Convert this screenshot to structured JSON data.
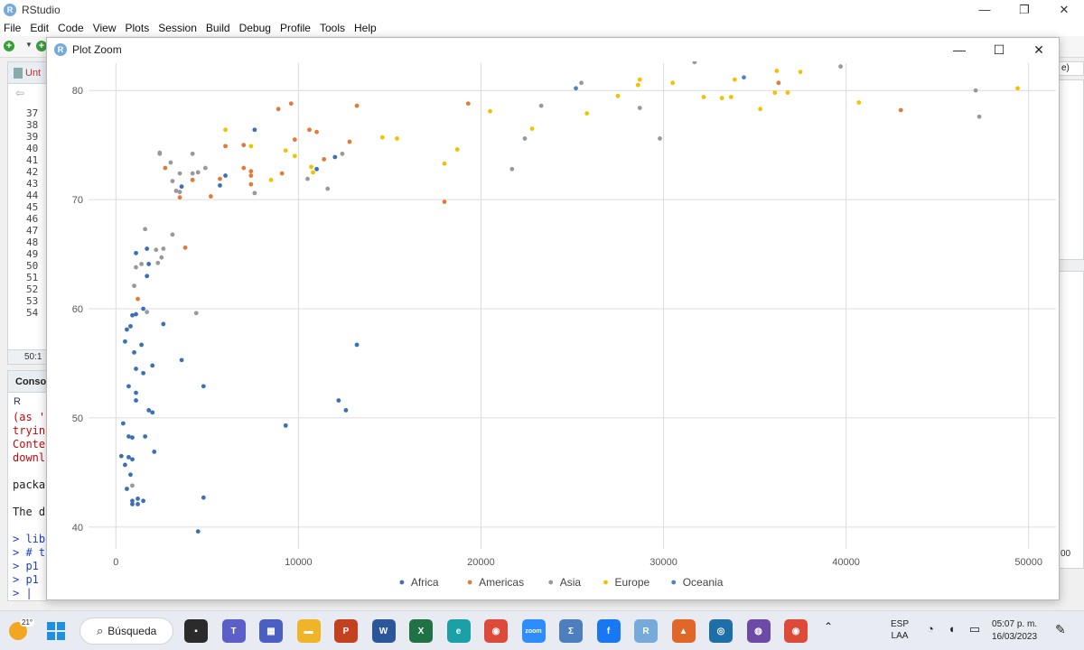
{
  "app": {
    "title": "RStudio",
    "logo_letter": "R",
    "window_controls": {
      "minimize": "—",
      "maximize": "❐",
      "close": "✕"
    }
  },
  "menu": [
    "File",
    "Edit",
    "Code",
    "View",
    "Plots",
    "Session",
    "Build",
    "Debug",
    "Profile",
    "Tools",
    "Help"
  ],
  "editor": {
    "tab_label": "Unt",
    "line_numbers": [
      "37",
      "38",
      "39",
      "40",
      "41",
      "42",
      "43",
      "44",
      "45",
      "46",
      "47",
      "48",
      "49",
      "50",
      "51",
      "52",
      "53",
      "54"
    ],
    "status": "50:1"
  },
  "console": {
    "tab_label": "Consol",
    "r_label": "R",
    "lines": [
      {
        "text": "(as '",
        "color": "red"
      },
      {
        "text": "tryin",
        "color": "red"
      },
      {
        "text": "Conte",
        "color": "red"
      },
      {
        "text": "downl",
        "color": "red"
      },
      {
        "text": "",
        "color": "gap"
      },
      {
        "text": "packa",
        "color": "blk"
      },
      {
        "text": "",
        "color": "gap"
      },
      {
        "text": "The d",
        "color": "blk"
      },
      {
        "text": "",
        "color": "gap"
      },
      {
        "text": "> lib",
        "color": "blu"
      },
      {
        "text": "> # t",
        "color": "blu"
      },
      {
        "text": "> p1",
        "color": "blu"
      },
      {
        "text": "> p1",
        "color": "blu"
      },
      {
        "text": "> |",
        "color": "blu"
      }
    ]
  },
  "right_fragment": {
    "top_text": "e)",
    "bottom_text": "00"
  },
  "plot_zoom": {
    "title": "Plot Zoom",
    "window_controls": {
      "minimize": "—",
      "maximize": "☐",
      "close": "✕"
    }
  },
  "chart_data": {
    "type": "scatter",
    "title": "",
    "xlabel": "",
    "ylabel": "",
    "xlim": [
      -1500,
      51500
    ],
    "ylim": [
      38,
      82.5
    ],
    "x_ticks": [
      0,
      10000,
      20000,
      30000,
      40000,
      50000
    ],
    "y_ticks": [
      40,
      50,
      60,
      70,
      80
    ],
    "grid": true,
    "legend_position": "bottom",
    "series": [
      {
        "name": "Africa",
        "color": "#3b6fb6",
        "points": [
          [
            4800,
            42.7
          ],
          [
            300,
            46.5
          ],
          [
            900,
            42.4
          ],
          [
            600,
            43.5
          ],
          [
            1100,
            52.3
          ],
          [
            4500,
            39.6
          ],
          [
            1800,
            50.7
          ],
          [
            2100,
            46.9
          ],
          [
            700,
            52.9
          ],
          [
            2000,
            54.8
          ],
          [
            900,
            59.4
          ],
          [
            1100,
            59.5
          ],
          [
            1500,
            60.0
          ],
          [
            600,
            58.1
          ],
          [
            800,
            58.4
          ],
          [
            9300,
            49.3
          ],
          [
            12600,
            50.7
          ],
          [
            12200,
            51.6
          ],
          [
            13200,
            56.7
          ],
          [
            3600,
            55.3
          ],
          [
            1100,
            65.1
          ],
          [
            1700,
            65.5
          ],
          [
            1800,
            64.1
          ],
          [
            1700,
            63.0
          ],
          [
            1000,
            56.0
          ],
          [
            1100,
            54.5
          ],
          [
            400,
            49.5
          ],
          [
            500,
            45.7
          ],
          [
            900,
            48.2
          ],
          [
            700,
            48.3
          ],
          [
            1600,
            48.3
          ],
          [
            1200,
            42.6
          ],
          [
            800,
            44.8
          ],
          [
            1100,
            51.6
          ],
          [
            2000,
            50.5
          ],
          [
            4800,
            52.9
          ],
          [
            2600,
            58.6
          ],
          [
            700,
            46.4
          ],
          [
            1500,
            54.1
          ],
          [
            1200,
            42.1
          ],
          [
            1400,
            56.7
          ],
          [
            900,
            46.2
          ],
          [
            500,
            57.0
          ],
          [
            6000,
            72.2
          ],
          [
            5700,
            71.3
          ],
          [
            7600,
            76.4
          ],
          [
            12000,
            73.9
          ],
          [
            3600,
            71.2
          ],
          [
            1500,
            42.4
          ],
          [
            11000,
            72.8
          ],
          [
            900,
            42.1
          ]
        ]
      },
      {
        "name": "Americas",
        "color": "#e07b39",
        "points": [
          [
            12800,
            75.3
          ],
          [
            3800,
            65.6
          ],
          [
            9100,
            72.4
          ],
          [
            36300,
            80.7
          ],
          [
            13200,
            78.6
          ],
          [
            7000,
            72.9
          ],
          [
            9600,
            78.8
          ],
          [
            7400,
            72.2
          ],
          [
            6000,
            74.9
          ],
          [
            5700,
            71.9
          ],
          [
            5200,
            70.3
          ],
          [
            4200,
            71.8
          ],
          [
            1200,
            60.9
          ],
          [
            3500,
            70.2
          ],
          [
            7400,
            72.6
          ],
          [
            11000,
            76.2
          ],
          [
            2700,
            72.9
          ],
          [
            9800,
            75.5
          ],
          [
            4200,
            71.8
          ],
          [
            7400,
            71.4
          ],
          [
            8900,
            78.3
          ],
          [
            19300,
            78.8
          ],
          [
            10600,
            76.4
          ],
          [
            11400,
            73.7
          ],
          [
            18000,
            69.8
          ],
          [
            43000,
            78.2
          ],
          [
            7000,
            75.0
          ]
        ]
      },
      {
        "name": "Asia",
        "color": "#999999",
        "points": [
          [
            900,
            43.8
          ],
          [
            29800,
            75.6
          ],
          [
            1400,
            64.1
          ],
          [
            1700,
            59.7
          ],
          [
            4900,
            72.9
          ],
          [
            39700,
            82.2
          ],
          [
            2500,
            64.7
          ],
          [
            3500,
            70.7
          ],
          [
            11600,
            71.0
          ],
          [
            4400,
            59.6
          ],
          [
            25500,
            80.7
          ],
          [
            31700,
            82.6
          ],
          [
            4500,
            72.5
          ],
          [
            1600,
            67.3
          ],
          [
            2300,
            64.2
          ],
          [
            23300,
            78.6
          ],
          [
            47300,
            77.6
          ],
          [
            10500,
            71.9
          ],
          [
            3100,
            66.8
          ],
          [
            1000,
            62.1
          ],
          [
            4200,
            74.2
          ],
          [
            2400,
            74.2
          ],
          [
            1100,
            63.8
          ],
          [
            3500,
            72.4
          ],
          [
            2200,
            65.4
          ],
          [
            28700,
            78.4
          ],
          [
            47100,
            80.0
          ],
          [
            21700,
            72.8
          ],
          [
            2400,
            74.3
          ],
          [
            4200,
            72.4
          ],
          [
            3000,
            73.4
          ],
          [
            3100,
            71.7
          ],
          [
            2600,
            65.5
          ],
          [
            22400,
            75.6
          ],
          [
            12400,
            74.2
          ],
          [
            7600,
            70.6
          ],
          [
            3300,
            70.8
          ]
        ]
      },
      {
        "name": "Europe",
        "color": "#f2c200",
        "points": [
          [
            6000,
            76.4
          ],
          [
            36100,
            79.8
          ],
          [
            33700,
            79.4
          ],
          [
            7400,
            74.9
          ],
          [
            10700,
            73.0
          ],
          [
            14600,
            75.7
          ],
          [
            22800,
            76.5
          ],
          [
            35300,
            78.3
          ],
          [
            33200,
            79.3
          ],
          [
            30500,
            80.7
          ],
          [
            32200,
            79.4
          ],
          [
            27500,
            79.5
          ],
          [
            18000,
            73.3
          ],
          [
            36200,
            81.8
          ],
          [
            40700,
            78.9
          ],
          [
            28600,
            80.5
          ],
          [
            9300,
            74.5
          ],
          [
            49400,
            80.2
          ],
          [
            36800,
            79.8
          ],
          [
            28700,
            81.0
          ],
          [
            10800,
            72.5
          ],
          [
            20500,
            78.1
          ],
          [
            9800,
            74.0
          ],
          [
            18700,
            74.6
          ],
          [
            15400,
            75.6
          ],
          [
            25800,
            77.9
          ],
          [
            33900,
            81.0
          ],
          [
            37500,
            81.7
          ],
          [
            8500,
            71.8
          ]
        ]
      },
      {
        "name": "Oceania",
        "color": "#4a86c5",
        "points": [
          [
            34400,
            81.2
          ],
          [
            25200,
            80.2
          ]
        ]
      }
    ]
  },
  "taskbar": {
    "weather_temp": "21°",
    "search_label": "Búsqueda",
    "apps": [
      {
        "name": "file-explorer-black",
        "color": "#2b2b2b",
        "glyph": "▪"
      },
      {
        "name": "teams",
        "color": "#5b5fc7",
        "glyph": "T"
      },
      {
        "name": "widgets-grid",
        "color": "#4a5fc1",
        "glyph": "▦"
      },
      {
        "name": "folder",
        "color": "#f0b429",
        "glyph": "▬"
      },
      {
        "name": "powerpoint",
        "color": "#c4411f",
        "glyph": "P"
      },
      {
        "name": "word",
        "color": "#2b579a",
        "glyph": "W"
      },
      {
        "name": "excel",
        "color": "#1f7244",
        "glyph": "X"
      },
      {
        "name": "edge",
        "color": "#1ba0a8",
        "glyph": "e"
      },
      {
        "name": "chrome",
        "color": "#de4a3a",
        "glyph": "◉"
      },
      {
        "name": "zoom",
        "color": "#2d8cff",
        "glyph": "zoom"
      },
      {
        "name": "settings-sigma",
        "color": "#4d7fbf",
        "glyph": "Σ"
      },
      {
        "name": "facebook",
        "color": "#1877f2",
        "glyph": "f"
      },
      {
        "name": "rstudio",
        "color": "#75aadb",
        "glyph": "R"
      },
      {
        "name": "matlab",
        "color": "#e0662a",
        "glyph": "▲"
      },
      {
        "name": "search-app",
        "color": "#1e6fa8",
        "glyph": "◎"
      },
      {
        "name": "github",
        "color": "#6e4aa8",
        "glyph": "◍"
      },
      {
        "name": "chrome-profile",
        "color": "#de4a3a",
        "glyph": "◉"
      }
    ],
    "language_top": "ESP",
    "language_bottom": "LAA",
    "clock_time": "05:07 p. m.",
    "clock_date": "16/03/2023"
  }
}
